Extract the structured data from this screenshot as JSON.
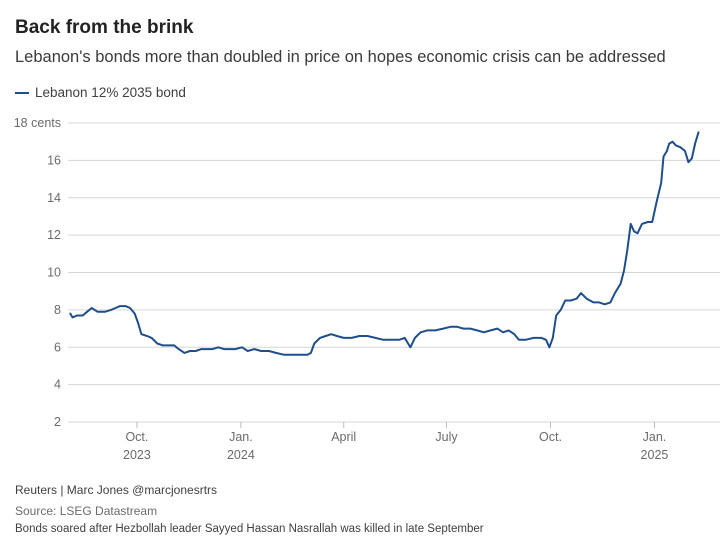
{
  "title": "Back from the brink",
  "subtitle": "Lebanon's bonds more than doubled in price on hopes economic crisis can be addressed",
  "legend": {
    "label": "Lebanon 12% 2035 bond",
    "color": "#1f4e8c"
  },
  "footer": {
    "credit": "Reuters | Marc Jones @marcjonesrtrs",
    "source": "Source: LSEG Datastream",
    "note": "Bonds soared after Hezbollah leader Sayyed Hassan Nasrallah was killed in late September"
  },
  "chart_data": {
    "type": "line",
    "title": "Back from the brink",
    "subtitle": "Lebanon's bonds more than doubled in price on hopes economic crisis can be addressed",
    "ylim": [
      2,
      18
    ],
    "y_ticks": [
      2,
      4,
      6,
      8,
      10,
      12,
      14,
      16,
      18
    ],
    "y_tick_labels": [
      "2",
      "4",
      "6",
      "8",
      "10",
      "12",
      "14",
      "16",
      "18 cents"
    ],
    "x_range": [
      "2023-08-01",
      "2025-02-28"
    ],
    "x_ticks": [
      {
        "date": "2023-10-01",
        "line1": "Oct.",
        "line2": "2023"
      },
      {
        "date": "2024-01-01",
        "line1": "Jan.",
        "line2": "2024"
      },
      {
        "date": "2024-04-01",
        "line1": "April",
        "line2": ""
      },
      {
        "date": "2024-07-01",
        "line1": "July",
        "line2": ""
      },
      {
        "date": "2024-10-01",
        "line1": "Oct.",
        "line2": ""
      },
      {
        "date": "2025-01-01",
        "line1": "Jan.",
        "line2": "2025"
      }
    ],
    "grid": true,
    "legend_position": "top-left",
    "series": [
      {
        "name": "Lebanon 12% 2035 bond",
        "color": "#1f4e8c",
        "points": [
          [
            "2023-08-03",
            7.8
          ],
          [
            "2023-08-05",
            7.6
          ],
          [
            "2023-08-09",
            7.7
          ],
          [
            "2023-08-14",
            7.7
          ],
          [
            "2023-08-18",
            7.9
          ],
          [
            "2023-08-22",
            8.1
          ],
          [
            "2023-08-27",
            7.9
          ],
          [
            "2023-09-03",
            7.9
          ],
          [
            "2023-09-08",
            8.0
          ],
          [
            "2023-09-12",
            8.1
          ],
          [
            "2023-09-16",
            8.2
          ],
          [
            "2023-09-21",
            8.2
          ],
          [
            "2023-09-25",
            8.1
          ],
          [
            "2023-09-29",
            7.8
          ],
          [
            "2023-10-02",
            7.3
          ],
          [
            "2023-10-05",
            6.7
          ],
          [
            "2023-10-10",
            6.6
          ],
          [
            "2023-10-14",
            6.5
          ],
          [
            "2023-10-19",
            6.2
          ],
          [
            "2023-10-24",
            6.1
          ],
          [
            "2023-10-29",
            6.1
          ],
          [
            "2023-11-03",
            6.1
          ],
          [
            "2023-11-07",
            5.9
          ],
          [
            "2023-11-12",
            5.7
          ],
          [
            "2023-11-17",
            5.8
          ],
          [
            "2023-11-22",
            5.8
          ],
          [
            "2023-11-27",
            5.9
          ],
          [
            "2023-12-02",
            5.9
          ],
          [
            "2023-12-07",
            5.9
          ],
          [
            "2023-12-12",
            6.0
          ],
          [
            "2023-12-17",
            5.9
          ],
          [
            "2023-12-22",
            5.9
          ],
          [
            "2023-12-27",
            5.9
          ],
          [
            "2024-01-02",
            6.0
          ],
          [
            "2024-01-07",
            5.8
          ],
          [
            "2024-01-13",
            5.9
          ],
          [
            "2024-01-19",
            5.8
          ],
          [
            "2024-01-26",
            5.8
          ],
          [
            "2024-02-01",
            5.7
          ],
          [
            "2024-02-08",
            5.6
          ],
          [
            "2024-02-15",
            5.6
          ],
          [
            "2024-02-22",
            5.6
          ],
          [
            "2024-02-29",
            5.6
          ],
          [
            "2024-03-03",
            5.7
          ],
          [
            "2024-03-06",
            6.2
          ],
          [
            "2024-03-11",
            6.5
          ],
          [
            "2024-03-16",
            6.6
          ],
          [
            "2024-03-21",
            6.7
          ],
          [
            "2024-03-26",
            6.6
          ],
          [
            "2024-04-01",
            6.5
          ],
          [
            "2024-04-08",
            6.5
          ],
          [
            "2024-04-15",
            6.6
          ],
          [
            "2024-04-22",
            6.6
          ],
          [
            "2024-04-29",
            6.5
          ],
          [
            "2024-05-06",
            6.4
          ],
          [
            "2024-05-13",
            6.4
          ],
          [
            "2024-05-20",
            6.4
          ],
          [
            "2024-05-25",
            6.5
          ],
          [
            "2024-05-30",
            6.0
          ],
          [
            "2024-06-03",
            6.5
          ],
          [
            "2024-06-08",
            6.8
          ],
          [
            "2024-06-14",
            6.9
          ],
          [
            "2024-06-21",
            6.9
          ],
          [
            "2024-06-28",
            7.0
          ],
          [
            "2024-07-05",
            7.1
          ],
          [
            "2024-07-10",
            7.1
          ],
          [
            "2024-07-16",
            7.0
          ],
          [
            "2024-07-22",
            7.0
          ],
          [
            "2024-07-28",
            6.9
          ],
          [
            "2024-08-03",
            6.8
          ],
          [
            "2024-08-09",
            6.9
          ],
          [
            "2024-08-15",
            7.0
          ],
          [
            "2024-08-20",
            6.8
          ],
          [
            "2024-08-25",
            6.9
          ],
          [
            "2024-08-30",
            6.7
          ],
          [
            "2024-09-03",
            6.4
          ],
          [
            "2024-09-09",
            6.4
          ],
          [
            "2024-09-16",
            6.5
          ],
          [
            "2024-09-23",
            6.5
          ],
          [
            "2024-09-27",
            6.4
          ],
          [
            "2024-09-30",
            6.0
          ],
          [
            "2024-10-03",
            6.5
          ],
          [
            "2024-10-06",
            7.7
          ],
          [
            "2024-10-10",
            8.0
          ],
          [
            "2024-10-14",
            8.5
          ],
          [
            "2024-10-19",
            8.5
          ],
          [
            "2024-10-24",
            8.6
          ],
          [
            "2024-10-28",
            8.9
          ],
          [
            "2024-11-02",
            8.6
          ],
          [
            "2024-11-08",
            8.4
          ],
          [
            "2024-11-13",
            8.4
          ],
          [
            "2024-11-18",
            8.3
          ],
          [
            "2024-11-23",
            8.4
          ],
          [
            "2024-11-27",
            8.9
          ],
          [
            "2024-12-02",
            9.4
          ],
          [
            "2024-12-05",
            10.1
          ],
          [
            "2024-12-08",
            11.2
          ],
          [
            "2024-12-11",
            12.6
          ],
          [
            "2024-12-14",
            12.2
          ],
          [
            "2024-12-17",
            12.1
          ],
          [
            "2024-12-21",
            12.6
          ],
          [
            "2024-12-26",
            12.7
          ],
          [
            "2024-12-30",
            12.7
          ],
          [
            "2025-01-03",
            13.8
          ],
          [
            "2025-01-07",
            14.8
          ],
          [
            "2025-01-09",
            16.2
          ],
          [
            "2025-01-12",
            16.5
          ],
          [
            "2025-01-14",
            16.9
          ],
          [
            "2025-01-17",
            17.0
          ],
          [
            "2025-01-20",
            16.8
          ],
          [
            "2025-01-24",
            16.7
          ],
          [
            "2025-01-28",
            16.5
          ],
          [
            "2025-01-31",
            15.9
          ],
          [
            "2025-02-03",
            16.1
          ],
          [
            "2025-02-06",
            16.9
          ],
          [
            "2025-02-09",
            17.5
          ]
        ]
      }
    ]
  }
}
